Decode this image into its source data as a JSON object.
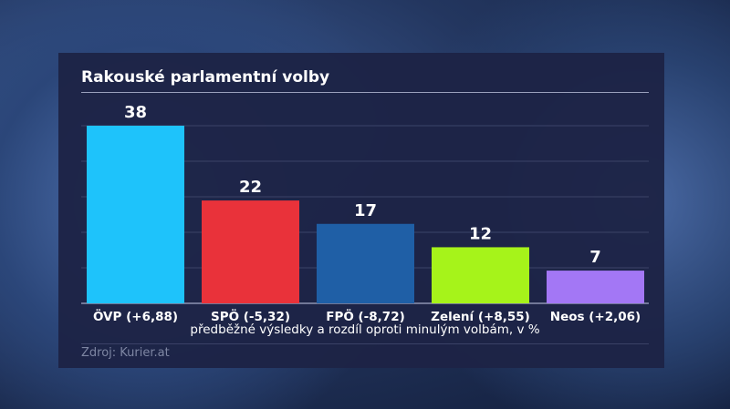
{
  "chart_data": {
    "type": "bar",
    "title": "Rakouské parlamentní volby",
    "categories": [
      "ÖVP (+6,88)",
      "SPÖ (-5,32)",
      "FPÖ (-8,72)",
      "Zelení (+8,55)",
      "Neos (+2,06)"
    ],
    "values": [
      38,
      22,
      17,
      12,
      7
    ],
    "colors": [
      "#1ec3fb",
      "#e9323a",
      "#1f5fa6",
      "#a6f31a",
      "#a377f5"
    ],
    "xlabel": "předběžné výsledky a rozdíl oproti minulým volbám, v %",
    "ylabel": "",
    "ylim": [
      0,
      38
    ],
    "grid": true,
    "source": "Zdroj: Kurier.at"
  }
}
